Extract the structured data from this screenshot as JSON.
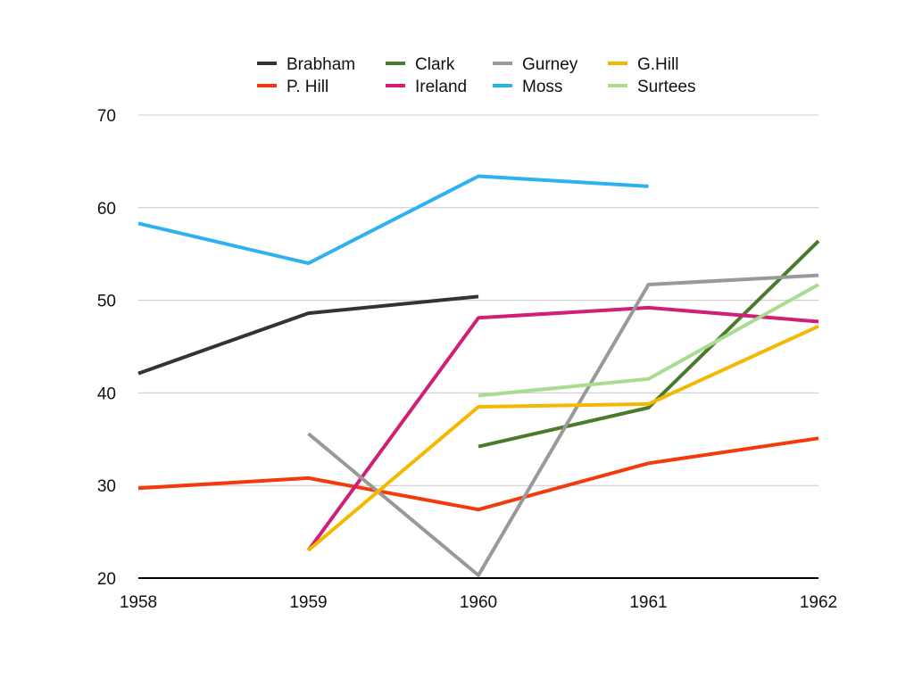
{
  "chart_data": {
    "type": "line",
    "title": "",
    "xlabel": "",
    "ylabel": "",
    "x": [
      1958,
      1959,
      1960,
      1961,
      1962
    ],
    "x_tick_labels": [
      "1958",
      "1959",
      "1960",
      "1961",
      "1962"
    ],
    "ylim": [
      20,
      70
    ],
    "y_ticks": [
      20,
      30,
      40,
      50,
      60,
      70
    ],
    "y_tick_labels": [
      "20",
      "30",
      "40",
      "50",
      "60",
      "70"
    ],
    "grid": true,
    "legend_position": "top",
    "series": [
      {
        "name": "Brabham",
        "color": "#333333",
        "values": [
          42.1,
          48.6,
          50.4,
          null,
          null
        ]
      },
      {
        "name": "P. Hill",
        "color": "#f23a0c",
        "values": [
          29.7,
          30.8,
          27.4,
          32.4,
          35.1
        ]
      },
      {
        "name": "Clark",
        "color": "#4a7a2c",
        "values": [
          null,
          null,
          34.2,
          38.4,
          56.4
        ]
      },
      {
        "name": "Ireland",
        "color": "#d01f74",
        "values": [
          null,
          23.0,
          48.1,
          49.2,
          47.7
        ]
      },
      {
        "name": "Gurney",
        "color": "#999999",
        "values": [
          null,
          35.6,
          20.3,
          51.7,
          52.7
        ]
      },
      {
        "name": "Moss",
        "color": "#2eb1f0",
        "values": [
          58.3,
          54.0,
          63.4,
          62.3,
          null
        ]
      },
      {
        "name": "G.Hill",
        "color": "#f5b800",
        "values": [
          null,
          23.0,
          38.5,
          38.8,
          47.2
        ]
      },
      {
        "name": "Surtees",
        "color": "#a8dc8f",
        "values": [
          null,
          null,
          39.7,
          41.5,
          51.7
        ]
      }
    ]
  }
}
